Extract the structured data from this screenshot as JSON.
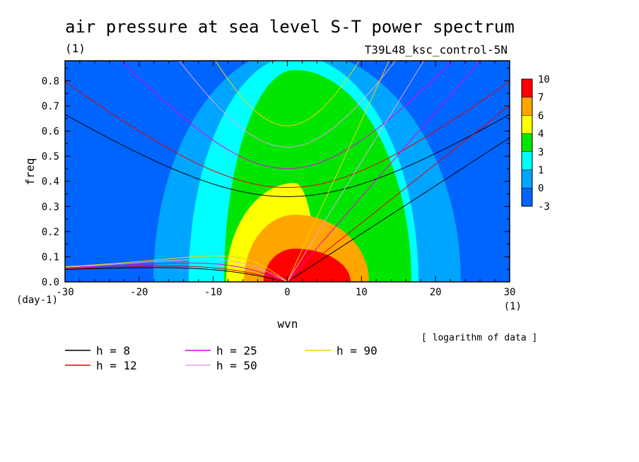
{
  "chart_data": {
    "type": "heatmap",
    "title": "air pressure at sea level S-T power spectrum",
    "subtitle_left": "(1)",
    "subtitle_right": "T39L48_ksc_control-5N",
    "xlabel": "wvn",
    "ylabel": "freq",
    "x_units": "(1)",
    "y_units": "(day-1)",
    "xlim": [
      -30,
      30
    ],
    "ylim": [
      0,
      0.88
    ],
    "x_ticks": [
      -30,
      -20,
      -10,
      0,
      10,
      20,
      30
    ],
    "x_tick_labels": [
      "-30",
      "-20",
      "-10",
      "0",
      "10",
      "20",
      "30"
    ],
    "y_ticks": [
      0.0,
      0.1,
      0.2,
      0.3,
      0.4,
      0.5,
      0.6,
      0.7,
      0.8
    ],
    "y_tick_labels": [
      "0.0",
      "0.1",
      "0.2",
      "0.3",
      "0.4",
      "0.5",
      "0.6",
      "0.7",
      "0.8"
    ],
    "note": "[ logarithm of data ]",
    "colorbar": {
      "labels": [
        "10",
        "7",
        "6",
        "4",
        "3",
        "1",
        "0",
        "-3"
      ],
      "colors": [
        "#ff0000",
        "#ffa500",
        "#ffff00",
        "#00e600",
        "#00ffff",
        "#00a5ff",
        "#0064ff"
      ],
      "levels": [
        -3,
        0,
        1,
        3,
        4,
        6,
        7,
        10
      ]
    },
    "contour_fill": {
      "center_wvn": 1,
      "center_freq": 0.0,
      "colors": [
        "#0064ff",
        "#00a5ff",
        "#00ffff",
        "#00e600",
        "#ffff00",
        "#ffa500",
        "#ff0000"
      ]
    },
    "dispersion_curves": {
      "legend_title": "",
      "series": [
        {
          "name": "h =  8",
          "h": 8,
          "color": "#000000"
        },
        {
          "name": "h = 12",
          "h": 12,
          "color": "#e60000"
        },
        {
          "name": "h = 25",
          "h": 25,
          "color": "#e600e6"
        },
        {
          "name": "h = 50",
          "h": 50,
          "color": "#e6a0e6"
        },
        {
          "name": "h = 90",
          "h": 90,
          "color": "#f0d200"
        }
      ]
    }
  }
}
